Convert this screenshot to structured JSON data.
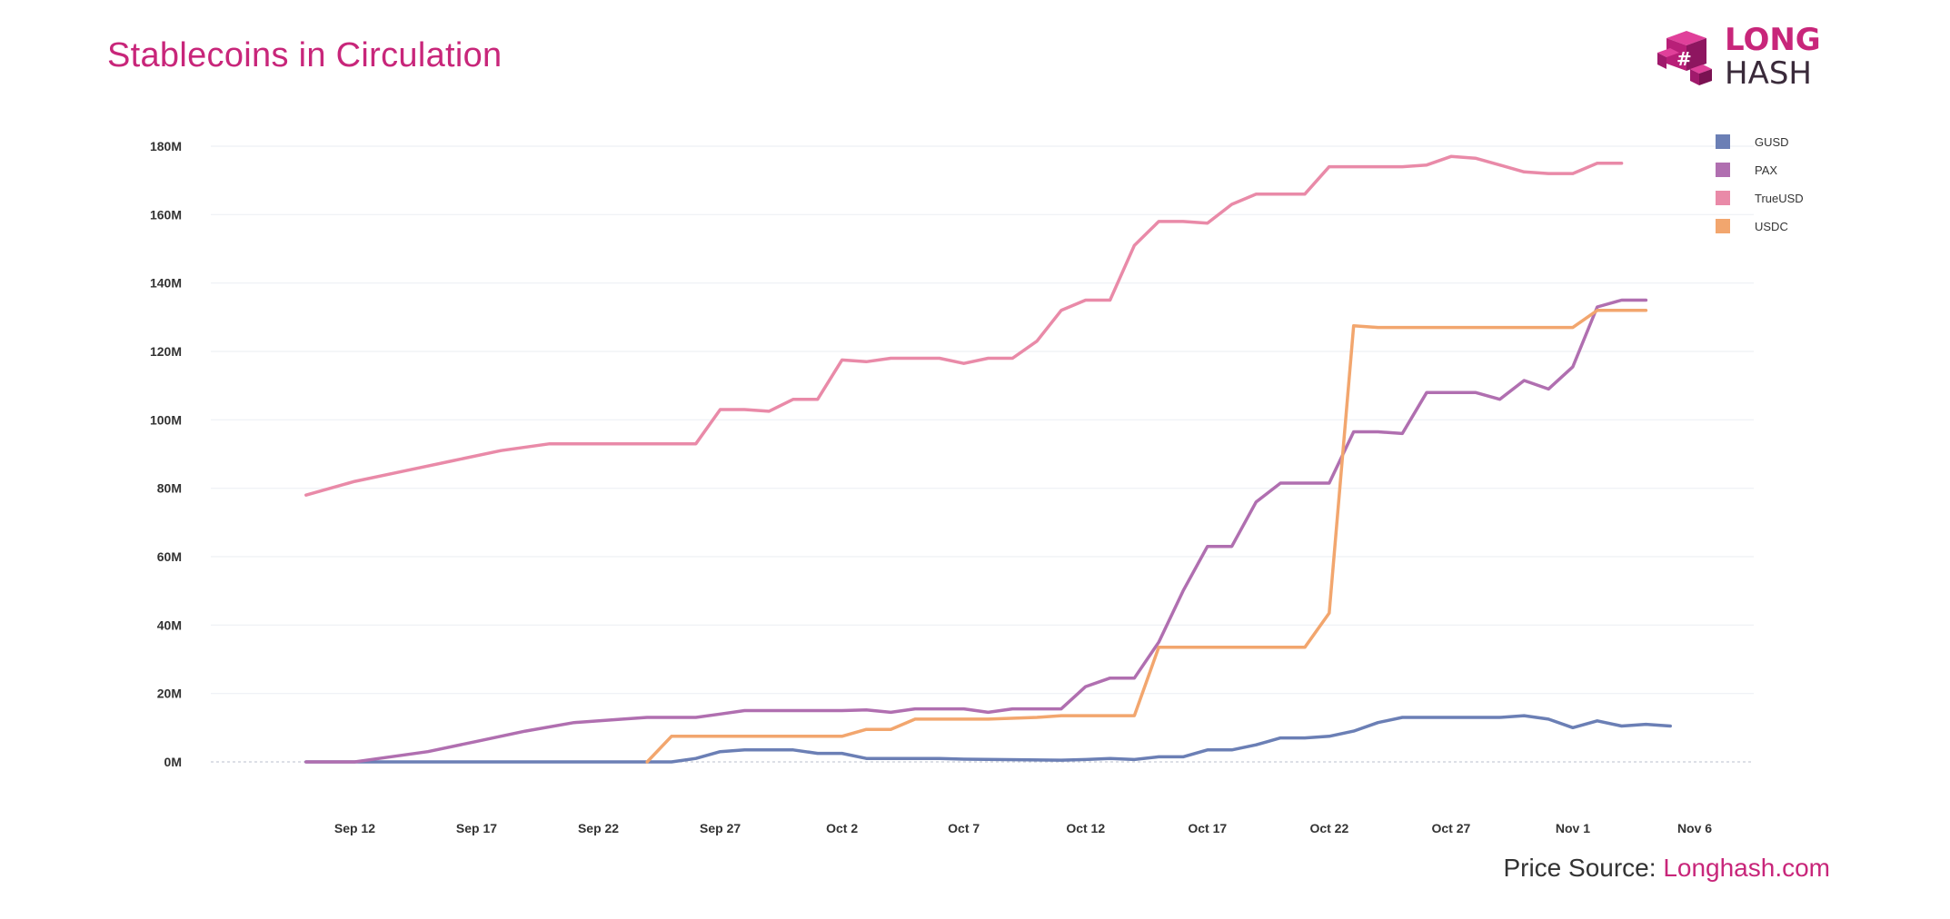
{
  "title": "Stablecoins in Circulation",
  "logo": {
    "line1": "LONG",
    "line2": "HASH"
  },
  "source": {
    "label": "Price Source: ",
    "link": "Longhash.com"
  },
  "chart_data": {
    "type": "line",
    "title": "Stablecoins in Circulation",
    "xlabel": "",
    "ylabel": "",
    "x_axis": {
      "type": "date",
      "start": "2018-09-09",
      "end": "2018-11-06",
      "tick_labels": [
        "Sep 12",
        "Sep 17",
        "Sep 22",
        "Sep 27",
        "Oct 2",
        "Oct 7",
        "Oct 12",
        "Oct 17",
        "Oct 22",
        "Oct 27",
        "Nov 1",
        "Nov 6"
      ]
    },
    "y_axis": {
      "ylim": [
        0,
        180
      ],
      "unit": "M",
      "tick_labels": [
        "0M",
        "20M",
        "40M",
        "60M",
        "80M",
        "100M",
        "120M",
        "140M",
        "160M",
        "180M"
      ]
    },
    "grid": "horizontal",
    "legend_position": "top-right",
    "series": [
      {
        "name": "GUSD",
        "color": "#6b7fb5",
        "points": [
          [
            "Sep 10",
            0
          ],
          [
            "Sep 25",
            0
          ],
          [
            "Sep 26",
            1
          ],
          [
            "Sep 27",
            3
          ],
          [
            "Sep 28",
            3.5
          ],
          [
            "Sep 30",
            3.5
          ],
          [
            "Oct 1",
            2.5
          ],
          [
            "Oct 2",
            2.5
          ],
          [
            "Oct 3",
            1
          ],
          [
            "Oct 5",
            1
          ],
          [
            "Oct 6",
            1
          ],
          [
            "Oct 7",
            0.8
          ],
          [
            "Oct 11",
            0.5
          ],
          [
            "Oct 12",
            0.7
          ],
          [
            "Oct 13",
            1
          ],
          [
            "Oct 14",
            0.7
          ],
          [
            "Oct 15",
            1.5
          ],
          [
            "Oct 16",
            1.5
          ],
          [
            "Oct 17",
            3.5
          ],
          [
            "Oct 18",
            3.5
          ],
          [
            "Oct 19",
            5
          ],
          [
            "Oct 20",
            7
          ],
          [
            "Oct 21",
            7
          ],
          [
            "Oct 22",
            7.5
          ],
          [
            "Oct 23",
            9
          ],
          [
            "Oct 24",
            11.5
          ],
          [
            "Oct 25",
            13
          ],
          [
            "Oct 29",
            13
          ],
          [
            "Oct 30",
            13.5
          ],
          [
            "Oct 31",
            12.5
          ],
          [
            "Nov 1",
            10
          ],
          [
            "Nov 2",
            12
          ],
          [
            "Nov 3",
            10.5
          ],
          [
            "Nov 4",
            11
          ],
          [
            "Nov 5",
            10.5
          ]
        ]
      },
      {
        "name": "PAX",
        "color": "#b06fb0",
        "points": [
          [
            "Sep 10",
            0
          ],
          [
            "Sep 12",
            0
          ],
          [
            "Sep 13",
            1
          ],
          [
            "Sep 15",
            3
          ],
          [
            "Sep 17",
            6
          ],
          [
            "Sep 19",
            9
          ],
          [
            "Sep 21",
            11.5
          ],
          [
            "Sep 23",
            12.5
          ],
          [
            "Sep 24",
            13
          ],
          [
            "Sep 26",
            13
          ],
          [
            "Sep 27",
            14
          ],
          [
            "Sep 28",
            15
          ],
          [
            "Oct 2",
            15
          ],
          [
            "Oct 3",
            15.2
          ],
          [
            "Oct 4",
            14.5
          ],
          [
            "Oct 5",
            15.5
          ],
          [
            "Oct 7",
            15.5
          ],
          [
            "Oct 8",
            14.5
          ],
          [
            "Oct 9",
            15.5
          ],
          [
            "Oct 10",
            15.5
          ],
          [
            "Oct 11",
            15.5
          ],
          [
            "Oct 12",
            22
          ],
          [
            "Oct 13",
            24.5
          ],
          [
            "Oct 14",
            24.5
          ],
          [
            "Oct 15",
            35
          ],
          [
            "Oct 16",
            50
          ],
          [
            "Oct 17",
            63
          ],
          [
            "Oct 18",
            63
          ],
          [
            "Oct 19",
            76
          ],
          [
            "Oct 20",
            81.5
          ],
          [
            "Oct 22",
            81.5
          ],
          [
            "Oct 23",
            96.5
          ],
          [
            "Oct 24",
            96.5
          ],
          [
            "Oct 25",
            96
          ],
          [
            "Oct 26",
            108
          ],
          [
            "Oct 28",
            108
          ],
          [
            "Oct 29",
            106
          ],
          [
            "Oct 30",
            111.5
          ],
          [
            "Oct 31",
            109
          ],
          [
            "Nov 1",
            115.5
          ],
          [
            "Nov 2",
            133
          ],
          [
            "Nov 3",
            135
          ],
          [
            "Nov 4",
            135
          ]
        ]
      },
      {
        "name": "TrueUSD",
        "color": "#e98aa8",
        "points": [
          [
            "Sep 10",
            78
          ],
          [
            "Sep 12",
            82
          ],
          [
            "Sep 14",
            85
          ],
          [
            "Sep 16",
            88
          ],
          [
            "Sep 18",
            91
          ],
          [
            "Sep 20",
            93
          ],
          [
            "Sep 22",
            93
          ],
          [
            "Sep 26",
            93
          ],
          [
            "Sep 27",
            103
          ],
          [
            "Sep 28",
            103
          ],
          [
            "Sep 29",
            102.5
          ],
          [
            "Sep 30",
            106
          ],
          [
            "Oct 1",
            106
          ],
          [
            "Oct 2",
            117.5
          ],
          [
            "Oct 3",
            117
          ],
          [
            "Oct 4",
            118
          ],
          [
            "Oct 6",
            118
          ],
          [
            "Oct 7",
            116.5
          ],
          [
            "Oct 8",
            118
          ],
          [
            "Oct 9",
            118
          ],
          [
            "Oct 10",
            123
          ],
          [
            "Oct 11",
            132
          ],
          [
            "Oct 12",
            135
          ],
          [
            "Oct 13",
            135
          ],
          [
            "Oct 14",
            151
          ],
          [
            "Oct 15",
            158
          ],
          [
            "Oct 16",
            158
          ],
          [
            "Oct 17",
            157.5
          ],
          [
            "Oct 18",
            163
          ],
          [
            "Oct 19",
            166
          ],
          [
            "Oct 21",
            166
          ],
          [
            "Oct 22",
            174
          ],
          [
            "Oct 23",
            174
          ],
          [
            "Oct 25",
            174
          ],
          [
            "Oct 26",
            174.5
          ],
          [
            "Oct 27",
            177
          ],
          [
            "Oct 28",
            176.5
          ],
          [
            "Oct 29",
            174.5
          ],
          [
            "Oct 30",
            172.5
          ],
          [
            "Oct 31",
            172
          ],
          [
            "Nov 1",
            172
          ],
          [
            "Nov 2",
            175
          ],
          [
            "Nov 3",
            175
          ]
        ]
      },
      {
        "name": "USDC",
        "color": "#f2a66e",
        "points": [
          [
            "Sep 24",
            0
          ],
          [
            "Sep 25",
            7.5
          ],
          [
            "Sep 26",
            7.5
          ],
          [
            "Oct 2",
            7.5
          ],
          [
            "Oct 3",
            9.5
          ],
          [
            "Oct 4",
            9.5
          ],
          [
            "Oct 5",
            12.5
          ],
          [
            "Oct 8",
            12.5
          ],
          [
            "Oct 10",
            13
          ],
          [
            "Oct 11",
            13.5
          ],
          [
            "Oct 13",
            13.5
          ],
          [
            "Oct 14",
            13.5
          ],
          [
            "Oct 15",
            33.5
          ],
          [
            "Oct 21",
            33.5
          ],
          [
            "Oct 22",
            43.5
          ],
          [
            "Oct 23",
            127.5
          ],
          [
            "Oct 24",
            127
          ],
          [
            "Oct 26",
            127
          ],
          [
            "Oct 31",
            127
          ],
          [
            "Nov 1",
            127
          ],
          [
            "Nov 2",
            132
          ],
          [
            "Nov 4",
            132
          ]
        ]
      }
    ]
  }
}
